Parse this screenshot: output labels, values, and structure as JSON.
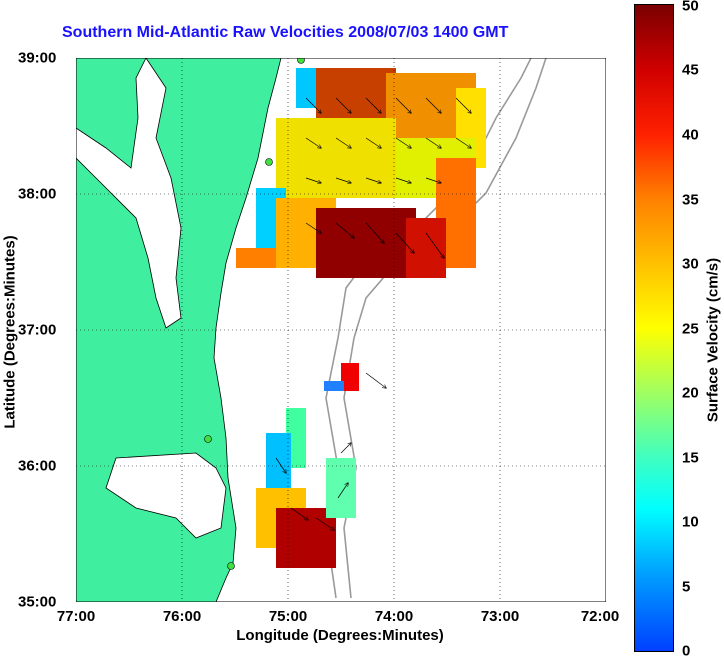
{
  "title": "Southern Mid-Atlantic Raw Velocities 2008/07/03 1400 GMT",
  "x_axis": {
    "label": "Longitude (Degrees:Minutes)",
    "ticks": [
      "77:00",
      "76:00",
      "75:00",
      "74:00",
      "73:00",
      "72:00"
    ]
  },
  "y_axis": {
    "label": "Latitude (Degrees:Minutes)",
    "ticks": [
      "39:00",
      "38:00",
      "37:00",
      "36:00",
      "35:00"
    ]
  },
  "colorbar": {
    "label": "Surface Velocity (cm/s)",
    "ticks": [
      "50",
      "45",
      "40",
      "35",
      "30",
      "25",
      "20",
      "15",
      "10",
      "5",
      "0"
    ]
  },
  "colors": {
    "land": "#40eea0",
    "title": "#1a12ff",
    "bathymetry": "#9a9a9a"
  }
}
